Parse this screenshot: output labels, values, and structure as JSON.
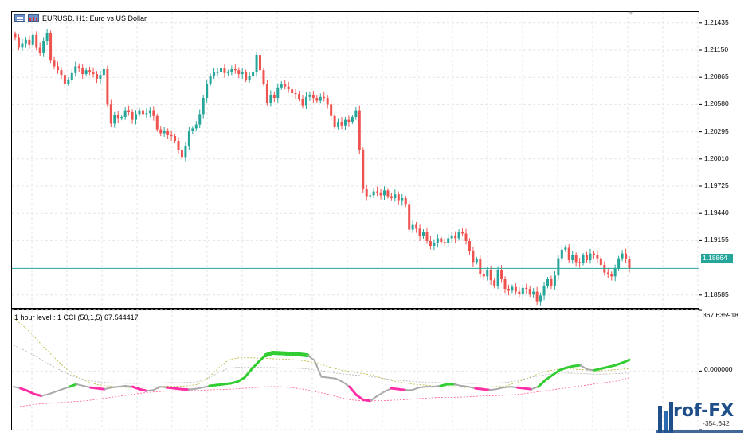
{
  "main": {
    "title": "EURUSD, H1:  Euro vs US Dollar",
    "price_levels": [
      "1.21435",
      "1.21150",
      "1.20865",
      "1.20580",
      "1.20295",
      "1.20010",
      "1.19725",
      "1.19440",
      "1.19155",
      "1.18585"
    ],
    "current_price": "1.18864",
    "colors": {
      "bull": "#26a69a",
      "bear": "#ef5350",
      "price_line": "#26a69a"
    }
  },
  "indicator": {
    "title": "1 hour level : 1 CCI (50,1,5) 67.544417",
    "levels": [
      "367.635918",
      "0.000000",
      "-354.642"
    ],
    "colors": {
      "up": "#32cd32",
      "down": "#ff2ea6",
      "neutral": "#a9a9a9",
      "upper_band": "#b5b535",
      "lower_band": "#ff5a8a",
      "mid_band": "#b0b0b0"
    }
  },
  "icons": {
    "toolbar_left": "chart-window-icon",
    "toolbar_right": "chart-properties-icon",
    "scroll": "chevron-down-icon"
  },
  "watermark": {
    "text": "rof-FX"
  },
  "chart_data": [
    {
      "type": "candlestick",
      "title": "EURUSD, H1:  Euro vs US Dollar",
      "ylim": [
        1.1845,
        1.2155
      ],
      "y_ticks": [
        1.21435,
        1.2115,
        1.20865,
        1.2058,
        1.20295,
        1.2001,
        1.19725,
        1.1944,
        1.19155,
        1.18585
      ],
      "current_price": 1.18864,
      "close": [
        1.2128,
        1.2118,
        1.2122,
        1.2126,
        1.2121,
        1.2131,
        1.2118,
        1.2112,
        1.2125,
        1.2133,
        1.2104,
        1.2098,
        1.2094,
        1.2089,
        1.208,
        1.2084,
        1.2091,
        1.2098,
        1.2096,
        1.209,
        1.2094,
        1.2092,
        1.209,
        1.2085,
        1.2089,
        1.2095,
        1.2058,
        1.2038,
        1.2047,
        1.2044,
        1.2045,
        1.2052,
        1.205,
        1.2042,
        1.2048,
        1.2052,
        1.2048,
        1.2049,
        1.2052,
        1.2046,
        1.2032,
        1.2028,
        1.203,
        1.2026,
        1.2025,
        1.202,
        1.201,
        1.2003,
        1.2015,
        1.203,
        1.2033,
        1.2037,
        1.2048,
        1.2065,
        1.208,
        1.2088,
        1.2092,
        1.2092,
        1.2096,
        1.2091,
        1.2092,
        1.2095,
        1.2094,
        1.209,
        1.2092,
        1.2084,
        1.2088,
        1.2092,
        1.211,
        1.2094,
        1.208,
        1.206,
        1.2068,
        1.2065,
        1.2076,
        1.208,
        1.2077,
        1.2074,
        1.207,
        1.2069,
        1.2064,
        1.2057,
        1.2066,
        1.2068,
        1.2065,
        1.2062,
        1.2066,
        1.2065,
        1.2058,
        1.2046,
        1.2035,
        1.204,
        1.2036,
        1.2042,
        1.204,
        1.2045,
        1.2052,
        1.201,
        1.197,
        1.1962,
        1.1963,
        1.1967,
        1.1966,
        1.1963,
        1.1968,
        1.1962,
        1.196,
        1.1964,
        1.1957,
        1.196,
        1.1953,
        1.1927,
        1.1932,
        1.1928,
        1.192,
        1.1925,
        1.1915,
        1.191,
        1.1913,
        1.1918,
        1.1914,
        1.1913,
        1.1918,
        1.1921,
        1.1918,
        1.1925,
        1.1923,
        1.1915,
        1.1905,
        1.1893,
        1.1896,
        1.188,
        1.1878,
        1.1885,
        1.1874,
        1.1868,
        1.1885,
        1.1875,
        1.1865,
        1.1863,
        1.1867,
        1.1862,
        1.186,
        1.1866,
        1.1865,
        1.1859,
        1.1862,
        1.1852,
        1.1858,
        1.1868,
        1.1875,
        1.1868,
        1.1879,
        1.1897,
        1.1906,
        1.1908,
        1.1895,
        1.19,
        1.1893,
        1.1892,
        1.19,
        1.1895,
        1.1902,
        1.19,
        1.1897,
        1.189,
        1.1882,
        1.188,
        1.1878,
        1.1886,
        1.1897,
        1.1902,
        1.1896,
        1.18864
      ],
      "colors": {
        "bull": "#26a69a",
        "bear": "#ef5350"
      },
      "grid": true
    },
    {
      "type": "line",
      "title": "1 hour level : 1 CCI (50,1,5) 67.544417",
      "ylim": [
        -354.642,
        367.635918
      ],
      "y_ticks": [
        367.635918,
        0.0,
        -354.642
      ],
      "series": [
        {
          "values": [
            -95,
            -105,
            -120,
            -140,
            -150,
            -140,
            -125,
            -110,
            -95,
            -80,
            -90,
            -100,
            -105,
            -110,
            -100,
            -95,
            -90,
            -95,
            -110,
            -120,
            -115,
            -95,
            -100,
            -105,
            -110,
            -112,
            -108,
            -100,
            -90,
            -85,
            -80,
            -75,
            -65,
            -40,
            10,
            55,
            95,
            110,
            108,
            106,
            104,
            100,
            95,
            65,
            -35,
            -40,
            -45,
            -65,
            -95,
            -145,
            -175,
            -180,
            -150,
            -125,
            -105,
            -110,
            -115,
            -115,
            -100,
            -95,
            -95,
            -90,
            -80,
            -80,
            -90,
            -95,
            -105,
            -110,
            -115,
            -110,
            -100,
            -95,
            -100,
            -105,
            -110,
            -95,
            -55,
            -25,
            5,
            20,
            30,
            35,
            10,
            5,
            15,
            25,
            35,
            50,
            67.5
          ]
        },
        {
          "values": [
            320,
            270,
            210,
            140,
            80,
            20,
            -30,
            -60,
            -80,
            -90,
            -95,
            -100,
            -100,
            -98,
            -95,
            -92,
            -92,
            -90,
            -80,
            -40,
            20,
            70,
            80,
            80,
            78,
            75,
            72,
            70,
            65,
            55,
            40,
            20,
            5,
            -5,
            -15,
            -25,
            -45,
            -60,
            -70,
            -80,
            -85,
            -90,
            -95,
            -95,
            -100,
            -100,
            -98,
            -95,
            -90,
            -70,
            -45,
            -20,
            0,
            10,
            15,
            10,
            5,
            0,
            5,
            10,
            15
          ]
        },
        {
          "values": [
            -220,
            -210,
            -200,
            -195,
            -190,
            -185,
            -180,
            -170,
            -160,
            -150,
            -140,
            -130,
            -125,
            -120,
            -120,
            -118,
            -115,
            -112,
            -110,
            -105,
            -100,
            -95,
            -95,
            -100,
            -110,
            -125,
            -140,
            -160,
            -175,
            -180,
            -180,
            -178,
            -175,
            -170,
            -165,
            -160,
            -160,
            -158,
            -155,
            -150,
            -150,
            -145,
            -140,
            -130,
            -120,
            -110,
            -100,
            -90,
            -80,
            -70,
            -60,
            -40
          ]
        }
      ],
      "colors": {
        "up": "#32cd32",
        "down": "#ff2ea6",
        "neutral": "#a9a9a9"
      },
      "grid": true
    }
  ]
}
